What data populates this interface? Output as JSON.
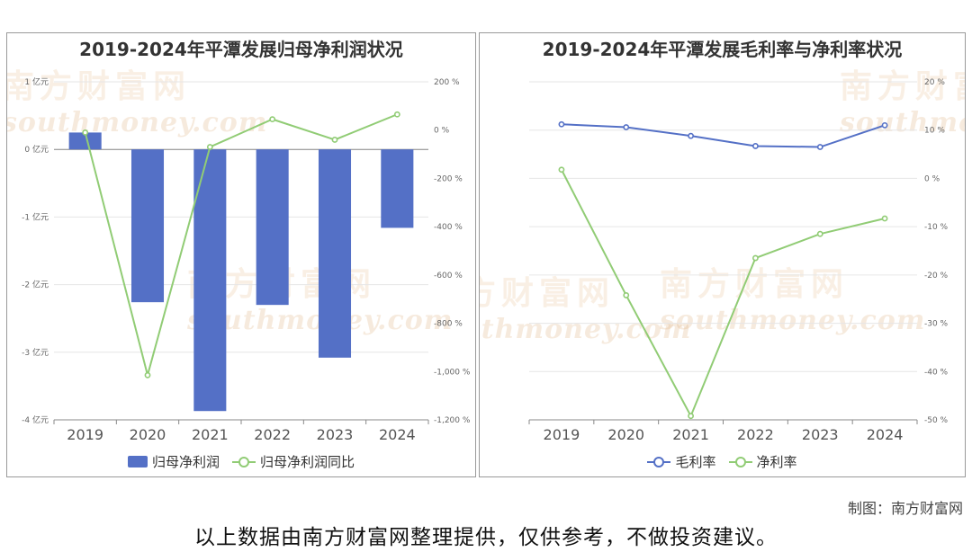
{
  "watermark": {
    "cn": "南方财富网",
    "en": "southmoney.com"
  },
  "credit": "制图：南方财富网",
  "disclaimer": "以上数据由南方财富网整理提供，仅供参考，不做投资建议。",
  "chart_data": [
    {
      "type": "bar+line",
      "title": "2019-2024年平潭发展归母净利润状况",
      "categories": [
        "2019",
        "2020",
        "2021",
        "2022",
        "2023",
        "2024"
      ],
      "series": [
        {
          "name": "归母净利润",
          "type": "bar",
          "axis": "left",
          "color": "#5470c6",
          "values": [
            0.25,
            -2.26,
            -3.87,
            -2.3,
            -3.08,
            -1.16
          ]
        },
        {
          "name": "归母净利润同比",
          "type": "line",
          "axis": "right",
          "color": "#91cc75",
          "values": [
            -10,
            -1015,
            -70,
            45,
            -40,
            65
          ]
        }
      ],
      "y_left": {
        "ticks": [
          1,
          0,
          -1,
          -2,
          -3,
          -4
        ],
        "tick_labels": [
          "1 亿元",
          "0 亿元",
          "-1 亿元",
          "-2 亿元",
          "-3 亿元",
          "-4 亿元"
        ],
        "ylim": [
          -4,
          1
        ]
      },
      "y_right": {
        "ticks": [
          200,
          0,
          -200,
          -400,
          -600,
          -800,
          -1000,
          -1200
        ],
        "tick_labels": [
          "200 %",
          "0 %",
          "-200 %",
          "-400 %",
          "-600 %",
          "-800 %",
          "-1,000 %",
          "-1,200 %"
        ],
        "ylim": [
          -1200,
          200
        ]
      },
      "grid": true,
      "legend": "bottom"
    },
    {
      "type": "line",
      "title": "2019-2024年平潭发展毛利率与净利率状况",
      "categories": [
        "2019",
        "2020",
        "2021",
        "2022",
        "2023",
        "2024"
      ],
      "series": [
        {
          "name": "毛利率",
          "color": "#5470c6",
          "values": [
            11.2,
            10.6,
            8.8,
            6.7,
            6.5,
            11
          ]
        },
        {
          "name": "净利率",
          "color": "#91cc75",
          "values": [
            1.8,
            -24.2,
            -49.2,
            -16.5,
            -11.5,
            -8.3
          ]
        }
      ],
      "y_right": {
        "ticks": [
          20,
          10,
          0,
          -10,
          -20,
          -30,
          -40,
          -50
        ],
        "tick_labels": [
          "20 %",
          "10 %",
          "0 %",
          "-10 %",
          "-20 %",
          "-30 %",
          "-40 %",
          "-50 %"
        ],
        "ylim": [
          -50,
          20
        ]
      },
      "grid": true,
      "legend": "bottom"
    }
  ]
}
